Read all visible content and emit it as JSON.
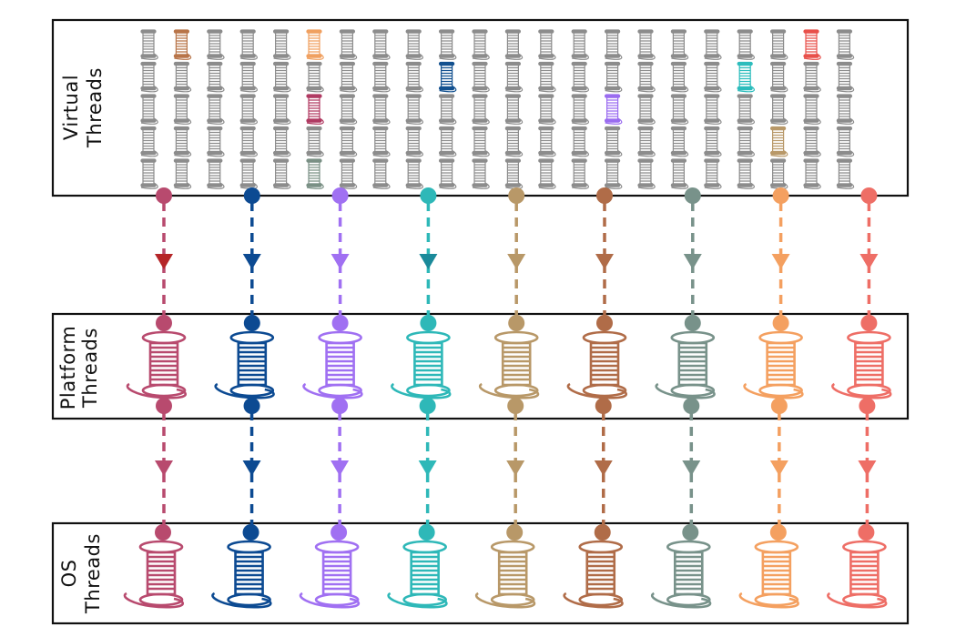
{
  "panels": {
    "virtual": {
      "line1": "Virtual",
      "line2": "Threads"
    },
    "platform": {
      "line1": "Platform",
      "line2": "Threads"
    },
    "os": {
      "line1": "OS",
      "line2": "Threads"
    }
  },
  "virtual_grid": {
    "rows": 5,
    "columns": 22,
    "default_color": "#8c8c8c"
  },
  "highlighted_virtual_threads": [
    {
      "row": 0,
      "col": 1,
      "color": "#b87448"
    },
    {
      "row": 0,
      "col": 5,
      "color": "#f0a060"
    },
    {
      "row": 0,
      "col": 20,
      "color": "#e8504a"
    },
    {
      "row": 1,
      "col": 9,
      "color": "#12508f"
    },
    {
      "row": 1,
      "col": 18,
      "color": "#2cbcbc"
    },
    {
      "row": 2,
      "col": 5,
      "color": "#b03a62"
    },
    {
      "row": 2,
      "col": 14,
      "color": "#9a6cf0"
    },
    {
      "row": 3,
      "col": 19,
      "color": "#b89868"
    },
    {
      "row": 4,
      "col": 5,
      "color": "#7a9085"
    }
  ],
  "carriers": [
    {
      "color": "#b84a6e",
      "arrow": "#b52528"
    },
    {
      "color": "#0c4a92",
      "arrow": "#0c4a92"
    },
    {
      "color": "#a070f2",
      "arrow": "#a070f2"
    },
    {
      "color": "#2eb8b8",
      "arrow": "#1a8a9a"
    },
    {
      "color": "#b89868",
      "arrow": "#b89868"
    },
    {
      "color": "#b06c48",
      "arrow": "#b06c48"
    },
    {
      "color": "#78928a",
      "arrow": "#78928a"
    },
    {
      "color": "#f4a060",
      "arrow": "#f4a060"
    },
    {
      "color": "#ee6e66",
      "arrow": "#ee6e66"
    }
  ]
}
